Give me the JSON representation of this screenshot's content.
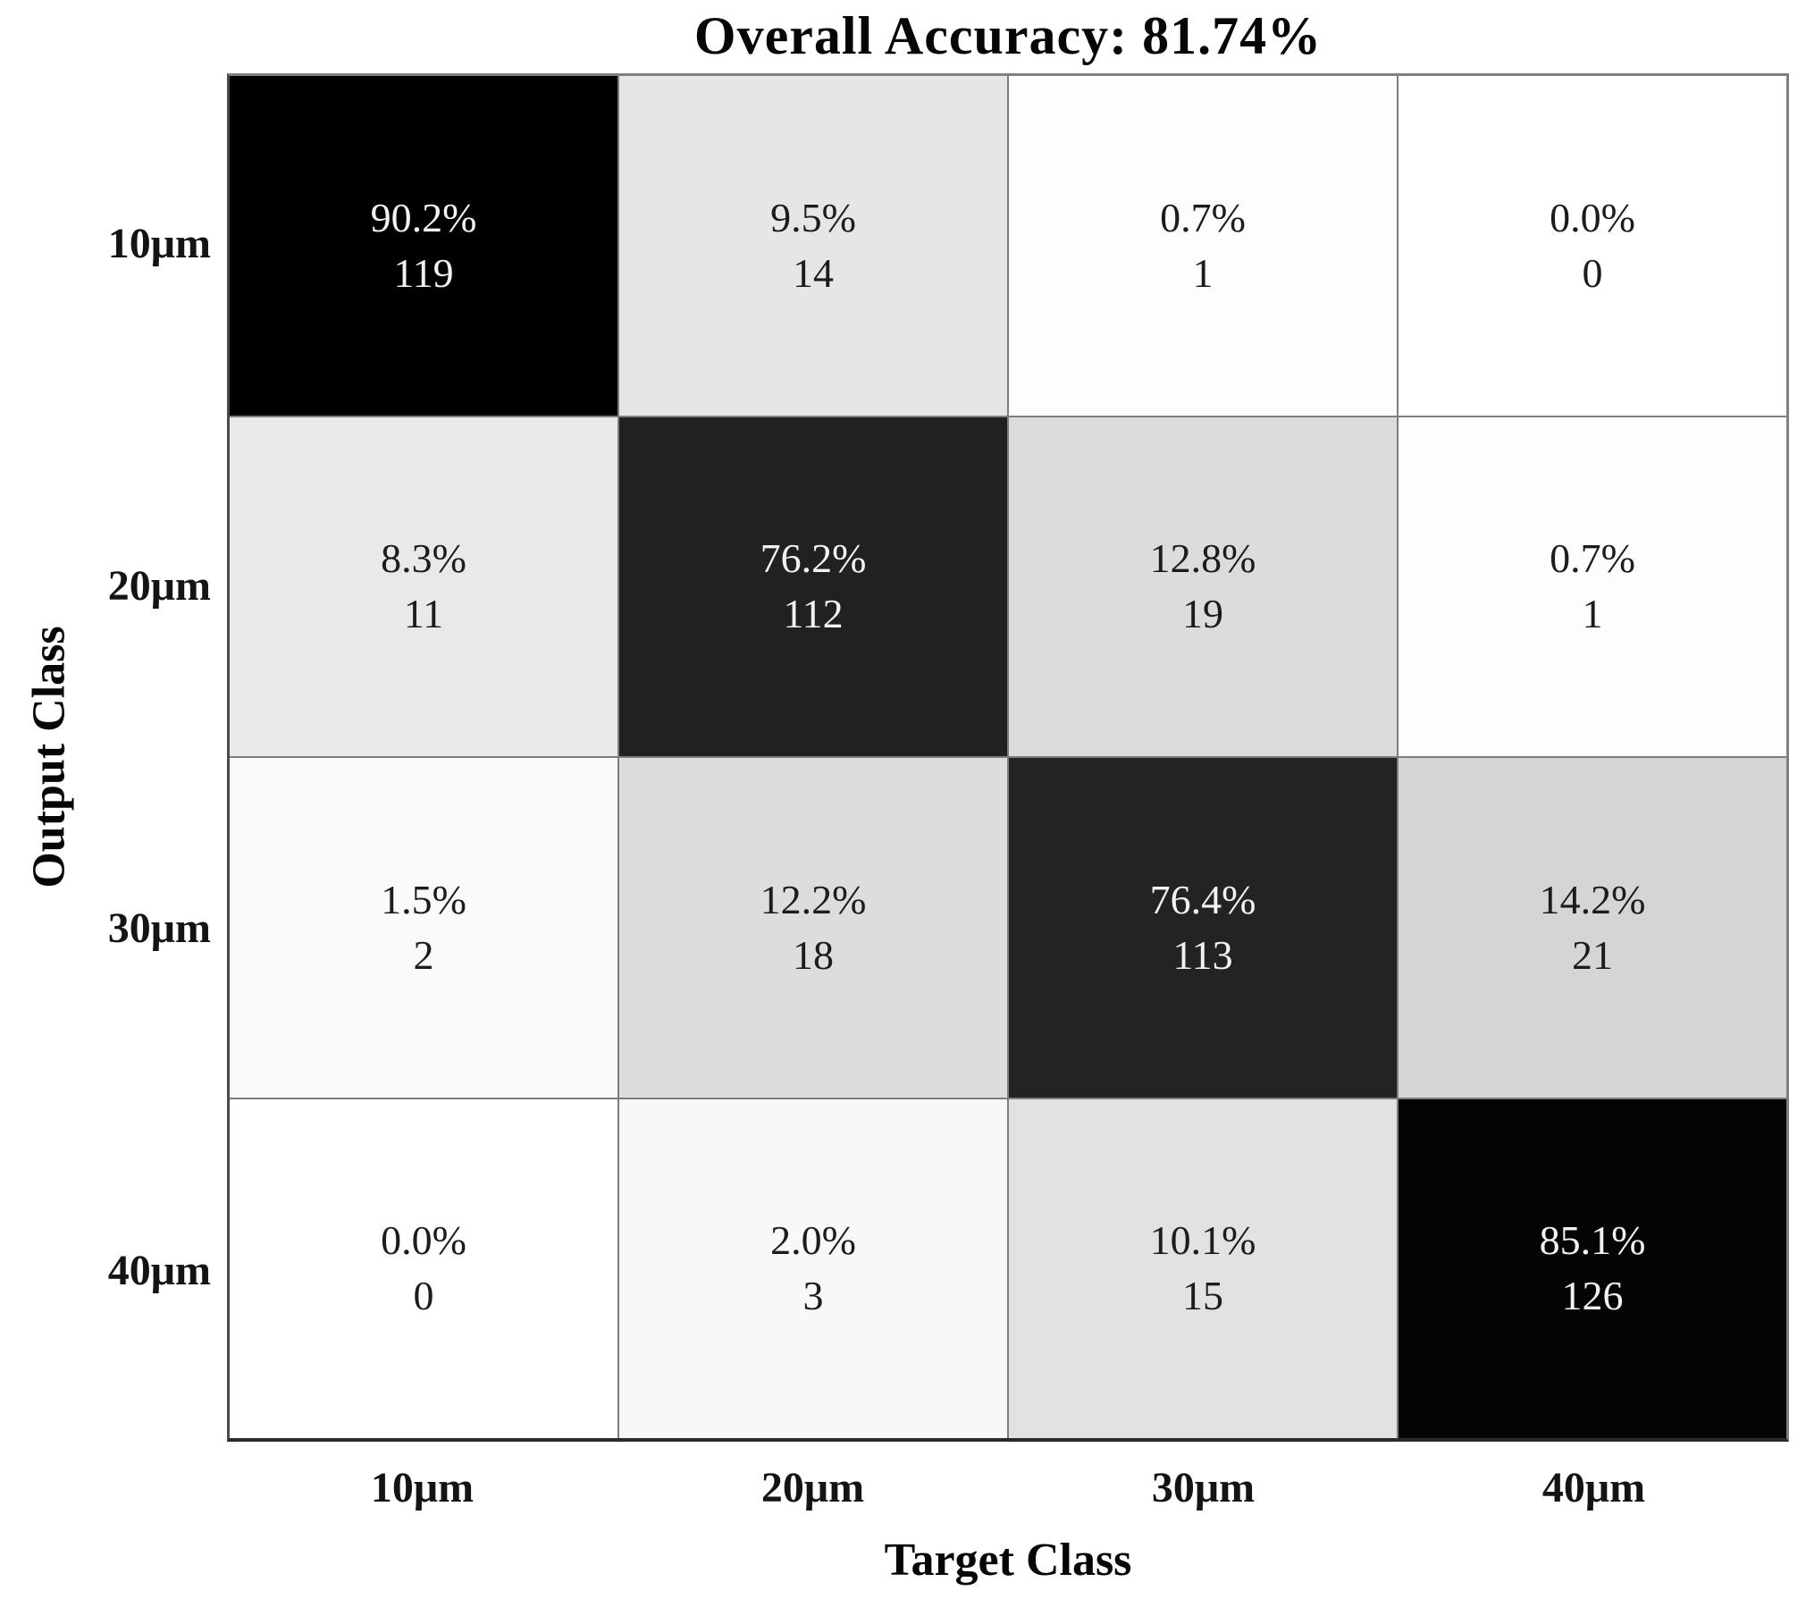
{
  "chart_data": {
    "type": "heatmap",
    "subtype": "confusion-matrix",
    "title": "Overall Accuracy: 81.74%",
    "xlabel": "Target Class",
    "ylabel": "Output Class",
    "classes": [
      "10μm",
      "20μm",
      "30μm",
      "40μm"
    ],
    "legend": "none",
    "grid": "on",
    "colormap": "white-to-black by percent",
    "cells": [
      {
        "row": "10μm",
        "col": "10μm",
        "percent": "90.2%",
        "count": "119",
        "bg": "#000000",
        "fg": "#f2f2f2"
      },
      {
        "row": "10μm",
        "col": "20μm",
        "percent": "9.5%",
        "count": "14",
        "bg": "#e6e6e6",
        "fg": "#1c1c1c"
      },
      {
        "row": "10μm",
        "col": "30μm",
        "percent": "0.7%",
        "count": "1",
        "bg": "#fdfdfd",
        "fg": "#1c1c1c"
      },
      {
        "row": "10μm",
        "col": "40μm",
        "percent": "0.0%",
        "count": "0",
        "bg": "#ffffff",
        "fg": "#1c1c1c"
      },
      {
        "row": "20μm",
        "col": "10μm",
        "percent": "8.3%",
        "count": "11",
        "bg": "#e9e9e9",
        "fg": "#1c1c1c"
      },
      {
        "row": "20μm",
        "col": "20μm",
        "percent": "76.2%",
        "count": "112",
        "bg": "#212121",
        "fg": "#f2f2f2"
      },
      {
        "row": "20μm",
        "col": "30μm",
        "percent": "12.8%",
        "count": "19",
        "bg": "#dcdcdc",
        "fg": "#1c1c1c"
      },
      {
        "row": "20μm",
        "col": "40μm",
        "percent": "0.7%",
        "count": "1",
        "bg": "#fdfdfd",
        "fg": "#1c1c1c"
      },
      {
        "row": "30μm",
        "col": "10μm",
        "percent": "1.5%",
        "count": "2",
        "bg": "#fafafa",
        "fg": "#1c1c1c"
      },
      {
        "row": "30μm",
        "col": "20μm",
        "percent": "12.2%",
        "count": "18",
        "bg": "#dddddd",
        "fg": "#1c1c1c"
      },
      {
        "row": "30μm",
        "col": "30μm",
        "percent": "76.4%",
        "count": "113",
        "bg": "#232323",
        "fg": "#f2f2f2"
      },
      {
        "row": "30μm",
        "col": "40μm",
        "percent": "14.2%",
        "count": "21",
        "bg": "#d5d5d5",
        "fg": "#1c1c1c"
      },
      {
        "row": "40μm",
        "col": "10μm",
        "percent": "0.0%",
        "count": "0",
        "bg": "#ffffff",
        "fg": "#1c1c1c"
      },
      {
        "row": "40μm",
        "col": "20μm",
        "percent": "2.0%",
        "count": "3",
        "bg": "#f8f8f8",
        "fg": "#1c1c1c"
      },
      {
        "row": "40μm",
        "col": "30μm",
        "percent": "10.1%",
        "count": "15",
        "bg": "#e2e2e2",
        "fg": "#1c1c1c"
      },
      {
        "row": "40μm",
        "col": "40μm",
        "percent": "85.1%",
        "count": "126",
        "bg": "#040404",
        "fg": "#f2f2f2"
      }
    ]
  }
}
